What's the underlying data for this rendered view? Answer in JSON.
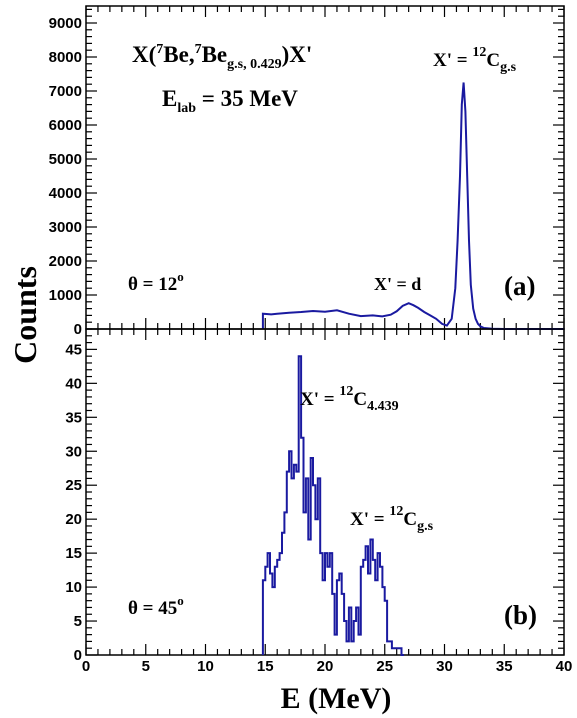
{
  "chart_data": [
    {
      "type": "line",
      "panel_label": "(a)",
      "xlim": [
        0,
        40
      ],
      "ylim": [
        0,
        9500
      ],
      "yticks": [
        0,
        1000,
        2000,
        3000,
        4000,
        5000,
        6000,
        7000,
        8000,
        9000
      ],
      "ylabel": "Counts",
      "line_color": "#1a1aa0",
      "annotations": {
        "reaction_pre": "X(",
        "reaction_sup1": "7",
        "reaction_be1": "Be,",
        "reaction_sup2": "7",
        "reaction_be2": "Be",
        "reaction_sub": "g.s, 0.429",
        "reaction_post": ")X'",
        "elab_main": "E",
        "elab_sub": "lab",
        "elab_value": " = 35 MeV",
        "theta": "θ = 12",
        "theta_sup": "o",
        "peak1_pre": "X' = d",
        "peak2_pre": "X' = ",
        "peak2_sup": "12",
        "peak2_main": "C",
        "peak2_sub": "g.s"
      },
      "x": [
        14.8,
        14.8,
        15.5,
        16.0,
        17.0,
        18.0,
        19.0,
        20.0,
        21.0,
        22.0,
        23.0,
        24.0,
        24.8,
        25.5,
        26.0,
        26.5,
        27.0,
        27.4,
        27.8,
        28.3,
        28.8,
        29.3,
        29.8,
        30.2,
        30.6,
        30.9,
        31.1,
        31.3,
        31.45,
        31.6,
        31.75,
        31.9,
        32.05,
        32.2,
        32.4,
        32.6,
        32.8,
        33.0,
        33.3,
        34.0,
        35.0,
        40.0
      ],
      "y": [
        0,
        450,
        430,
        450,
        480,
        500,
        530,
        510,
        550,
        450,
        380,
        400,
        370,
        420,
        520,
        680,
        760,
        700,
        620,
        500,
        400,
        300,
        150,
        100,
        300,
        1200,
        2600,
        4500,
        6600,
        7250,
        6400,
        4500,
        2600,
        1300,
        600,
        300,
        150,
        80,
        30,
        10,
        0,
        0
      ]
    },
    {
      "type": "bar",
      "panel_label": "(b)",
      "xlim": [
        0,
        40
      ],
      "ylim": [
        0,
        48
      ],
      "yticks": [
        0,
        5,
        10,
        15,
        20,
        25,
        30,
        35,
        40,
        45
      ],
      "xticks": [
        0,
        5,
        10,
        15,
        20,
        25,
        30,
        35,
        40
      ],
      "xlabel": "E (MeV)",
      "line_color": "#1a1aa0",
      "annotations": {
        "theta": "θ = 45",
        "theta_sup": "o",
        "peak1_pre": "X' = ",
        "peak1_sup": "12",
        "peak1_main": "C",
        "peak1_sub": "4.439",
        "peak2_pre": "X' = ",
        "peak2_sup": "12",
        "peak2_main": "C",
        "peak2_sub": "g.s"
      },
      "bin_width": 0.2,
      "bin_start": 14.8,
      "values": [
        11,
        13,
        15,
        12,
        10,
        13,
        14,
        15,
        18,
        21,
        27,
        30,
        26,
        28,
        27,
        44,
        32,
        21,
        26,
        17,
        29,
        25,
        20,
        26,
        15,
        11,
        15,
        13,
        15,
        9,
        3,
        11,
        12,
        9,
        5,
        2,
        7,
        2,
        5,
        7,
        3,
        13,
        14,
        16,
        12,
        17,
        14,
        11,
        15,
        13,
        10,
        8,
        2,
        2,
        1,
        1,
        1,
        1,
        0
      ]
    }
  ]
}
